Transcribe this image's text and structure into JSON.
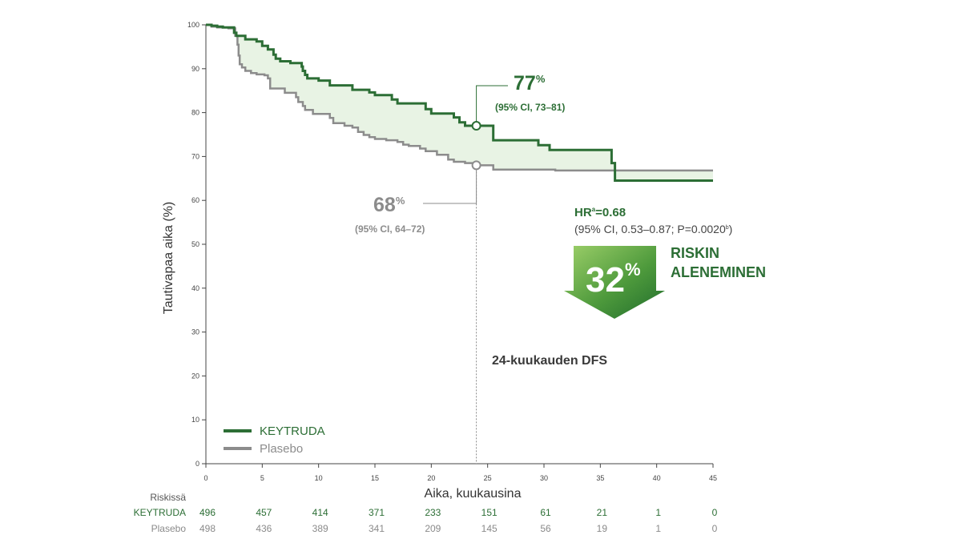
{
  "chart_data": {
    "type": "line",
    "ylabel": "Tautivapaa aika (%)",
    "xlabel": "Aika, kuukausina",
    "xlim": [
      0,
      45
    ],
    "ylim": [
      0,
      100
    ],
    "xticks": [
      0,
      5,
      10,
      15,
      20,
      25,
      30,
      35,
      40,
      45
    ],
    "yticks": [
      0,
      10,
      20,
      30,
      40,
      50,
      60,
      70,
      80,
      90,
      100
    ],
    "grid": false,
    "legend_position": "bottom-left",
    "series": [
      {
        "name": "KEYTRUDA",
        "color": "#2c6e35",
        "steps": [
          [
            0,
            100
          ],
          [
            0.5,
            99.8
          ],
          [
            1,
            99.6
          ],
          [
            1.5,
            99.4
          ],
          [
            2.5,
            99.1
          ],
          [
            2.5,
            98.2
          ],
          [
            2.7,
            97.5
          ],
          [
            3.5,
            96.7
          ],
          [
            4.5,
            96.2
          ],
          [
            5,
            95.2
          ],
          [
            5.5,
            94.4
          ],
          [
            6,
            93.2
          ],
          [
            6.2,
            92.3
          ],
          [
            6.6,
            91.7
          ],
          [
            7.5,
            91.3
          ],
          [
            8.5,
            90.5
          ],
          [
            8.6,
            89.5
          ],
          [
            8.8,
            88.6
          ],
          [
            9,
            87.8
          ],
          [
            10,
            87.3
          ],
          [
            11,
            86.2
          ],
          [
            13,
            85.2
          ],
          [
            14.5,
            84.6
          ],
          [
            15,
            84.0
          ],
          [
            16.5,
            83.0
          ],
          [
            17,
            82.1
          ],
          [
            19.5,
            80.8
          ],
          [
            20,
            79.8
          ],
          [
            22,
            78.9
          ],
          [
            22.5,
            77.8
          ],
          [
            23,
            77.0
          ],
          [
            24,
            77.0
          ],
          [
            25.5,
            73.7
          ],
          [
            29,
            73.7
          ],
          [
            29.5,
            72.6
          ],
          [
            30.5,
            71.5
          ],
          [
            34.5,
            71.5
          ],
          [
            35.7,
            71.5
          ],
          [
            36,
            68.5
          ],
          [
            36.3,
            64.5
          ],
          [
            45,
            64.5
          ]
        ]
      },
      {
        "name": "Plasebo",
        "color": "#8c8c8c",
        "steps": [
          [
            0,
            100
          ],
          [
            0.5,
            99.6
          ],
          [
            1,
            99.4
          ],
          [
            2,
            99.2
          ],
          [
            2.6,
            97.5
          ],
          [
            2.8,
            95.5
          ],
          [
            2.9,
            93
          ],
          [
            3,
            91
          ],
          [
            3.2,
            90.3
          ],
          [
            3.5,
            89.5
          ],
          [
            4,
            89
          ],
          [
            4.5,
            88.7
          ],
          [
            5.2,
            88.5
          ],
          [
            5.5,
            87.8
          ],
          [
            5.7,
            85.5
          ],
          [
            7,
            84.5
          ],
          [
            8,
            83.5
          ],
          [
            8.2,
            82.4
          ],
          [
            8.6,
            81.5
          ],
          [
            8.8,
            80.6
          ],
          [
            9.5,
            79.7
          ],
          [
            11,
            78.8
          ],
          [
            11.3,
            77.6
          ],
          [
            12.3,
            77.0
          ],
          [
            13,
            76.6
          ],
          [
            13.5,
            75.6
          ],
          [
            14,
            74.9
          ],
          [
            14.5,
            74.4
          ],
          [
            15,
            74.0
          ],
          [
            16,
            73.7
          ],
          [
            17,
            73.3
          ],
          [
            17.5,
            72.7
          ],
          [
            18,
            72.4
          ],
          [
            19,
            71.8
          ],
          [
            19.5,
            71.2
          ],
          [
            20.5,
            70.4
          ],
          [
            21.5,
            69.3
          ],
          [
            22,
            68.8
          ],
          [
            23,
            68.5
          ],
          [
            24,
            68.0
          ],
          [
            25.5,
            67.0
          ],
          [
            29,
            67.0
          ],
          [
            31,
            66.8
          ],
          [
            45,
            66.8
          ]
        ]
      }
    ],
    "annotations": {
      "keytruda_value": "77",
      "keytruda_unit": "%",
      "keytruda_ci": "(95% CI, 73–81)",
      "plasebo_value": "68",
      "plasebo_unit": "%",
      "plasebo_ci": "(95% CI, 64–72)",
      "landmark_x": 24,
      "landmark_label": "24-kuukauden DFS",
      "hr_label": "HR",
      "hr_sup": "a",
      "hr_value": "=0.68",
      "hr_ci": "(95% CI, 0.53–0.87; P=0.0020",
      "hr_ci_sup": "b",
      "hr_ci_close": ")",
      "reduction_value": "32",
      "reduction_unit": "%",
      "reduction_line1": "RISKIN",
      "reduction_line2": "ALENEMINEN"
    },
    "risk_table": {
      "header": "Riskissä",
      "rows": [
        {
          "name": "KEYTRUDA",
          "values": [
            "496",
            "457",
            "414",
            "371",
            "233",
            "151",
            "61",
            "21",
            "1",
            "0"
          ]
        },
        {
          "name": "Plasebo",
          "values": [
            "498",
            "436",
            "389",
            "341",
            "209",
            "145",
            "56",
            "19",
            "1",
            "0"
          ]
        }
      ]
    }
  }
}
